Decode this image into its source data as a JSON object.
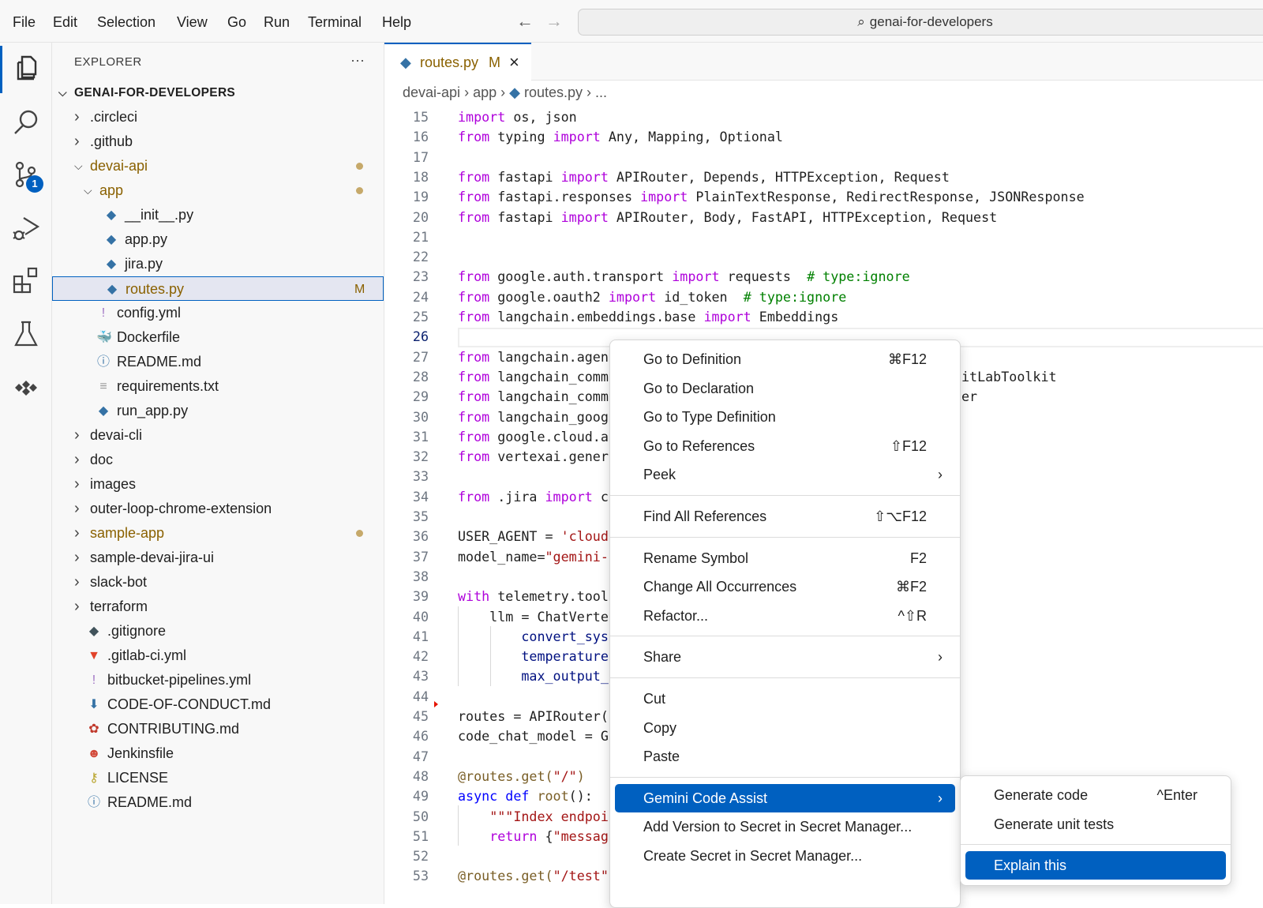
{
  "menubar": {
    "items": [
      "File",
      "Edit",
      "Selection",
      "View",
      "Go",
      "Run",
      "Terminal",
      "Help"
    ],
    "back_icon": "arrow-left-icon",
    "forward_icon": "arrow-right-icon",
    "search": "genai-for-developers"
  },
  "activity": {
    "items": [
      "explorer-icon",
      "search-icon",
      "source-control-icon",
      "run-debug-icon",
      "extensions-icon",
      "testing-icon",
      "gemini-icon"
    ],
    "scm_badge": "1",
    "accent": "#0060c0"
  },
  "explorer": {
    "title": "EXPLORER",
    "more": "···",
    "root": "GENAI-FOR-DEVELOPERS",
    "items": [
      {
        "label": ".circleci",
        "type": "folder",
        "open": false,
        "depth": 1
      },
      {
        "label": ".github",
        "type": "folder",
        "open": false,
        "depth": 1
      },
      {
        "label": "devai-api",
        "type": "folder",
        "open": true,
        "depth": 1,
        "modified_dot": true
      },
      {
        "label": "app",
        "type": "folder",
        "open": true,
        "depth": 2,
        "modified_dot": true
      },
      {
        "label": "__init__.py",
        "type": "python",
        "depth": 3
      },
      {
        "label": "app.py",
        "type": "python",
        "depth": 3
      },
      {
        "label": "jira.py",
        "type": "python",
        "depth": 3
      },
      {
        "label": "routes.py",
        "type": "python",
        "depth": 3,
        "selected": true,
        "status": "M"
      },
      {
        "label": "config.yml",
        "type": "yaml",
        "depth": 2
      },
      {
        "label": "Dockerfile",
        "type": "docker",
        "depth": 2
      },
      {
        "label": "README.md",
        "type": "info",
        "depth": 2
      },
      {
        "label": "requirements.txt",
        "type": "text",
        "depth": 2
      },
      {
        "label": "run_app.py",
        "type": "python",
        "depth": 2
      },
      {
        "label": "devai-cli",
        "type": "folder",
        "open": false,
        "depth": 1
      },
      {
        "label": "doc",
        "type": "folder",
        "open": false,
        "depth": 1
      },
      {
        "label": "images",
        "type": "folder",
        "open": false,
        "depth": 1
      },
      {
        "label": "outer-loop-chrome-extension",
        "type": "folder",
        "open": false,
        "depth": 1
      },
      {
        "label": "sample-app",
        "type": "folder",
        "open": false,
        "depth": 1,
        "modified_dot": true
      },
      {
        "label": "sample-devai-jira-ui",
        "type": "folder",
        "open": false,
        "depth": 1
      },
      {
        "label": "slack-bot",
        "type": "folder",
        "open": false,
        "depth": 1
      },
      {
        "label": "terraform",
        "type": "folder",
        "open": false,
        "depth": 1
      },
      {
        "label": ".gitignore",
        "type": "git",
        "depth": 1
      },
      {
        "label": ".gitlab-ci.yml",
        "type": "gitlab",
        "depth": 1
      },
      {
        "label": "bitbucket-pipelines.yml",
        "type": "yaml",
        "depth": 1
      },
      {
        "label": "CODE-OF-CONDUCT.md",
        "type": "markdown",
        "depth": 1
      },
      {
        "label": "CONTRIBUTING.md",
        "type": "contributing",
        "depth": 1
      },
      {
        "label": "Jenkinsfile",
        "type": "jenkins",
        "depth": 1
      },
      {
        "label": "LICENSE",
        "type": "license",
        "depth": 1
      },
      {
        "label": "README.md",
        "type": "info",
        "depth": 1
      }
    ]
  },
  "editor": {
    "tab": {
      "label": "routes.py",
      "status": "M",
      "close": "×"
    },
    "breadcrumb": [
      "devai-api",
      "app",
      "routes.py",
      "..."
    ],
    "current_line": 26,
    "lines": [
      {
        "n": 15,
        "t": [
          [
            "import",
            "k"
          ],
          [
            " os, json",
            "n"
          ]
        ]
      },
      {
        "n": 16,
        "t": [
          [
            "from",
            "k"
          ],
          [
            " typing ",
            "n"
          ],
          [
            "import",
            "k"
          ],
          [
            " Any, Mapping, Optional",
            "n"
          ]
        ]
      },
      {
        "n": 17,
        "t": []
      },
      {
        "n": 18,
        "t": [
          [
            "from",
            "k"
          ],
          [
            " fastapi ",
            "n"
          ],
          [
            "import",
            "k"
          ],
          [
            " APIRouter, Depends, HTTPException, Request",
            "n"
          ]
        ]
      },
      {
        "n": 19,
        "t": [
          [
            "from",
            "k"
          ],
          [
            " fastapi.responses ",
            "n"
          ],
          [
            "import",
            "k"
          ],
          [
            " PlainTextResponse, RedirectResponse, JSONResponse",
            "n"
          ]
        ]
      },
      {
        "n": 20,
        "t": [
          [
            "from",
            "k"
          ],
          [
            " fastapi ",
            "n"
          ],
          [
            "import",
            "k"
          ],
          [
            " APIRouter, Body, FastAPI, HTTPException, Request",
            "n"
          ]
        ]
      },
      {
        "n": 21,
        "t": []
      },
      {
        "n": 22,
        "t": []
      },
      {
        "n": 23,
        "t": [
          [
            "from",
            "k"
          ],
          [
            " google.auth.transport ",
            "n"
          ],
          [
            "import",
            "k"
          ],
          [
            " requests  ",
            "n"
          ],
          [
            "# type:ignore",
            "c"
          ]
        ]
      },
      {
        "n": 24,
        "t": [
          [
            "from",
            "k"
          ],
          [
            " google.oauth2 ",
            "n"
          ],
          [
            "import",
            "k"
          ],
          [
            " id_token  ",
            "n"
          ],
          [
            "# type:ignore",
            "c"
          ]
        ]
      },
      {
        "n": 25,
        "t": [
          [
            "from",
            "k"
          ],
          [
            " langchain.embeddings.base ",
            "n"
          ],
          [
            "import",
            "k"
          ],
          [
            " Embeddings",
            "n"
          ]
        ]
      },
      {
        "n": 26,
        "t": []
      },
      {
        "n": 27,
        "t": [
          [
            "from",
            "k"
          ],
          [
            " langchain.agen",
            "n"
          ]
        ]
      },
      {
        "n": 28,
        "t": [
          [
            "from",
            "k"
          ],
          [
            " langchain_comm",
            "n"
          ]
        ],
        "tail": "itLabToolkit"
      },
      {
        "n": 29,
        "t": [
          [
            "from",
            "k"
          ],
          [
            " langchain_comm",
            "n"
          ]
        ],
        "tail": "er"
      },
      {
        "n": 30,
        "t": [
          [
            "from",
            "k"
          ],
          [
            " langchain_goog",
            "n"
          ]
        ]
      },
      {
        "n": 31,
        "t": [
          [
            "from",
            "k"
          ],
          [
            " google.cloud.a",
            "n"
          ]
        ]
      },
      {
        "n": 32,
        "t": [
          [
            "from",
            "k"
          ],
          [
            " vertexai.gener",
            "n"
          ]
        ]
      },
      {
        "n": 33,
        "t": []
      },
      {
        "n": 34,
        "t": [
          [
            "from",
            "k"
          ],
          [
            " .jira ",
            "n"
          ],
          [
            "import",
            "k"
          ],
          [
            " c",
            "n"
          ]
        ]
      },
      {
        "n": 35,
        "t": []
      },
      {
        "n": 36,
        "t": [
          [
            "USER_AGENT = ",
            "n"
          ],
          [
            "'cloud",
            "s"
          ]
        ]
      },
      {
        "n": 37,
        "t": [
          [
            "model_name=",
            "n"
          ],
          [
            "\"gemini-",
            "s"
          ]
        ]
      },
      {
        "n": 38,
        "t": []
      },
      {
        "n": 39,
        "t": [
          [
            "with",
            "k"
          ],
          [
            " telemetry.tool",
            "n"
          ]
        ]
      },
      {
        "n": 40,
        "t": [
          [
            "    llm = ChatVerte",
            "n"
          ]
        ]
      },
      {
        "n": 41,
        "t": [
          [
            "        ",
            "n"
          ],
          [
            "convert_sys",
            "p"
          ]
        ]
      },
      {
        "n": 42,
        "t": [
          [
            "        ",
            "n"
          ],
          [
            "temperature",
            "p"
          ]
        ]
      },
      {
        "n": 43,
        "t": [
          [
            "        ",
            "n"
          ],
          [
            "max_output_",
            "p"
          ]
        ]
      },
      {
        "n": 44,
        "t": []
      },
      {
        "n": 45,
        "t": [
          [
            "routes = APIRouter(",
            "n"
          ]
        ]
      },
      {
        "n": 46,
        "t": [
          [
            "code_chat_model = G",
            "n"
          ]
        ]
      },
      {
        "n": 47,
        "t": []
      },
      {
        "n": 48,
        "t": [
          [
            "@routes.get(",
            "d"
          ],
          [
            "\"/\"",
            "s"
          ],
          [
            ")",
            "d"
          ]
        ]
      },
      {
        "n": 49,
        "t": [
          [
            "async",
            "b"
          ],
          [
            " ",
            "n"
          ],
          [
            "def",
            "b"
          ],
          [
            " ",
            "n"
          ],
          [
            "root",
            "d"
          ],
          [
            "():",
            "n"
          ]
        ]
      },
      {
        "n": 50,
        "t": [
          [
            "    ",
            "n"
          ],
          [
            "\"\"\"Index endpoi",
            "s"
          ]
        ]
      },
      {
        "n": 51,
        "t": [
          [
            "    ",
            "n"
          ],
          [
            "return",
            "k"
          ],
          [
            " {",
            "n"
          ],
          [
            "\"messag",
            "s"
          ]
        ]
      },
      {
        "n": 52,
        "t": []
      },
      {
        "n": 53,
        "t": [
          [
            "@routes.get(",
            "d"
          ],
          [
            "\"/test\"",
            "s"
          ]
        ]
      }
    ]
  },
  "context_menu": {
    "groups": [
      [
        {
          "label": "Go to Definition",
          "shortcut": "⌘F12"
        },
        {
          "label": "Go to Declaration"
        },
        {
          "label": "Go to Type Definition"
        },
        {
          "label": "Go to References",
          "shortcut": "⇧F12"
        },
        {
          "label": "Peek",
          "submenu": true
        }
      ],
      [
        {
          "label": "Find All References",
          "shortcut": "⇧⌥F12"
        }
      ],
      [
        {
          "label": "Rename Symbol",
          "shortcut": "F2"
        },
        {
          "label": "Change All Occurrences",
          "shortcut": "⌘F2"
        },
        {
          "label": "Refactor...",
          "shortcut": "^⇧R"
        }
      ],
      [
        {
          "label": "Share",
          "submenu": true
        }
      ],
      [
        {
          "label": "Cut"
        },
        {
          "label": "Copy"
        },
        {
          "label": "Paste"
        }
      ],
      [
        {
          "label": "Gemini Code Assist",
          "submenu": true,
          "highlighted": true
        },
        {
          "label": "Add Version to Secret in Secret Manager..."
        },
        {
          "label": "Create Secret in Secret Manager..."
        }
      ]
    ]
  },
  "submenu": {
    "groups": [
      [
        {
          "label": "Generate code",
          "shortcut": "^Enter"
        },
        {
          "label": "Generate unit tests"
        }
      ],
      [
        {
          "label": "Explain this",
          "highlighted": true
        }
      ]
    ]
  }
}
